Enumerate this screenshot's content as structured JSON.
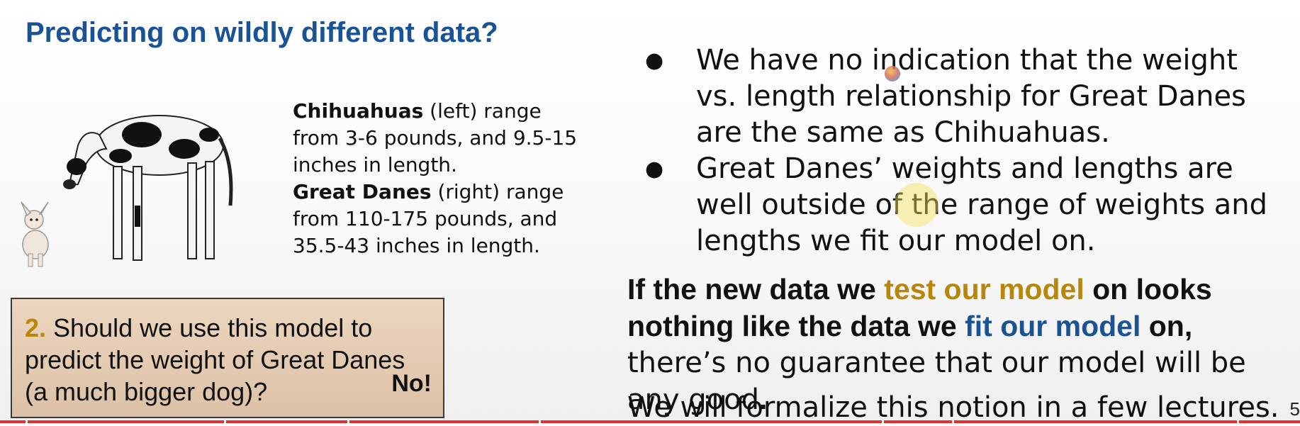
{
  "slide": {
    "title": "Predicting on wildly different data?",
    "description": {
      "chihuahua_label": "Chihuahuas",
      "chihuahua_text": " (left) range from 3-6 pounds, and 9.5-15 inches in length.",
      "greatdane_label": "Great Danes",
      "greatdane_text": " (right) range from 110-175 pounds, and 35.5-43 inches in length."
    },
    "question": {
      "number": "2.",
      "text": " Should we use this model to predict the weight of Great Danes (a much bigger dog)?",
      "answer": "No!"
    },
    "bullets": [
      "We have no indication that the weight vs. length relationship for Great Danes are the same as Chihuahuas.",
      "Great Danes’ weights and lengths are well outside of the range of weights and lengths we fit our model on."
    ],
    "conclusion": {
      "part1": "If the new data we ",
      "highlight_gold": "test our model",
      "part2": " on looks nothing like the data we ",
      "highlight_blue": "fit our model",
      "part3": " on,",
      "part4": " there’s no guarantee that our model will be any good",
      "period": "."
    },
    "footer_line": "We will formalize this notion in a few lectures.",
    "page_number": "5"
  },
  "colors": {
    "title": "#1a5296",
    "gold": "#b8860b",
    "blue": "#1a5296",
    "question_box": "#e5cdb3",
    "progress": "#e03030"
  }
}
